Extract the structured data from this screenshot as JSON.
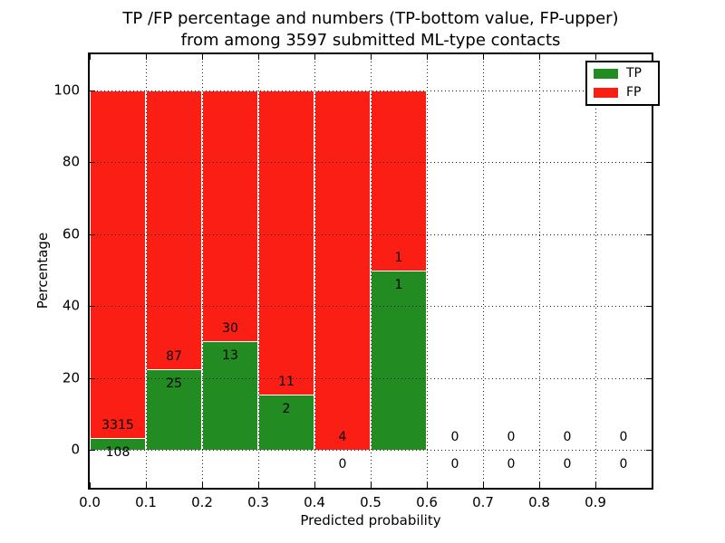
{
  "chart_data": {
    "type": "bar",
    "stacked": true,
    "title_line1": "TP /FP percentage and numbers (TP-bottom value, FP-upper)",
    "title_line2": "from among 3597 submitted ML-type contacts",
    "xlabel": "Predicted probability",
    "ylabel": "Percentage",
    "xlim": [
      0.0,
      1.0
    ],
    "ylim": [
      -10.6,
      110.8
    ],
    "x_ticks": [
      "0.0",
      "0.1",
      "0.2",
      "0.3",
      "0.4",
      "0.5",
      "0.6",
      "0.7",
      "0.8",
      "0.9"
    ],
    "y_ticks": [
      0,
      20,
      40,
      60,
      80,
      100
    ],
    "grid": "dotted",
    "legend_position": "upper right",
    "total_contacts": 3597,
    "colors": {
      "tp": "#228b22",
      "fp": "#fb1e15"
    },
    "legend": [
      {
        "label": "TP",
        "color": "#228b22"
      },
      {
        "label": "FP",
        "color": "#fb1e15"
      }
    ],
    "bins": [
      {
        "range": "0.0-0.1",
        "tp": 108,
        "fp": 3315,
        "tp_pct": 3.2,
        "fp_pct": 96.8
      },
      {
        "range": "0.1-0.2",
        "tp": 25,
        "fp": 87,
        "tp_pct": 22.3,
        "fp_pct": 77.7
      },
      {
        "range": "0.2-0.3",
        "tp": 13,
        "fp": 30,
        "tp_pct": 30.2,
        "fp_pct": 69.8
      },
      {
        "range": "0.3-0.4",
        "tp": 2,
        "fp": 11,
        "tp_pct": 15.4,
        "fp_pct": 84.6
      },
      {
        "range": "0.4-0.5",
        "tp": 0,
        "fp": 4,
        "tp_pct": 0.0,
        "fp_pct": 100.0
      },
      {
        "range": "0.5-0.6",
        "tp": 1,
        "fp": 1,
        "tp_pct": 50.0,
        "fp_pct": 50.0
      },
      {
        "range": "0.6-0.7",
        "tp": 0,
        "fp": 0,
        "tp_pct": 0.0,
        "fp_pct": 0.0
      },
      {
        "range": "0.7-0.8",
        "tp": 0,
        "fp": 0,
        "tp_pct": 0.0,
        "fp_pct": 0.0
      },
      {
        "range": "0.8-0.9",
        "tp": 0,
        "fp": 0,
        "tp_pct": 0.0,
        "fp_pct": 0.0
      },
      {
        "range": "0.9-1.0",
        "tp": 0,
        "fp": 0,
        "tp_pct": 0.0,
        "fp_pct": 0.0
      }
    ]
  }
}
